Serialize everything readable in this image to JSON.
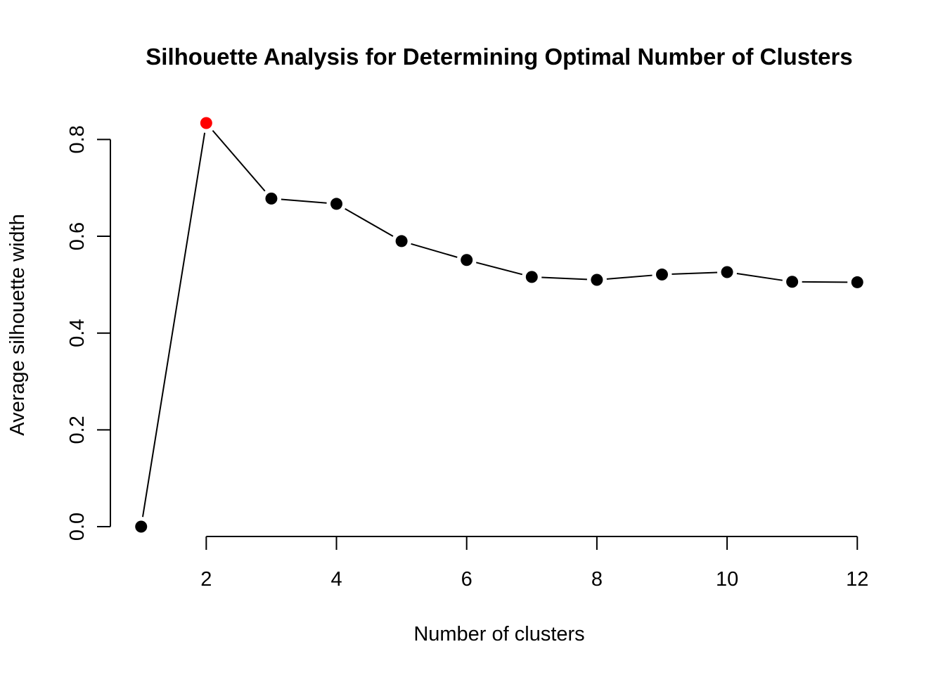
{
  "chart_data": {
    "type": "line",
    "title": "Silhouette Analysis for Determining Optimal Number of Clusters",
    "xlabel": "Number of clusters",
    "ylabel": "Average silhouette width",
    "x": [
      1,
      2,
      3,
      4,
      5,
      6,
      7,
      8,
      9,
      10,
      11,
      12
    ],
    "series": [
      {
        "values": [
          0.0,
          0.834,
          0.678,
          0.667,
          0.59,
          0.551,
          0.516,
          0.51,
          0.521,
          0.526,
          0.506,
          0.505
        ]
      }
    ],
    "highlight": {
      "x": 2,
      "y": 0.834,
      "color": "#ff0000"
    },
    "point_color": "#000000",
    "line_color": "#000000",
    "xticks": [
      2,
      4,
      6,
      8,
      10,
      12
    ],
    "xtick_labels": [
      "2",
      "4",
      "6",
      "8",
      "10",
      "12"
    ],
    "yticks": [
      0.0,
      0.2,
      0.4,
      0.6,
      0.8
    ],
    "ytick_labels": [
      "0.0",
      "0.2",
      "0.4",
      "0.6",
      "0.8"
    ],
    "xlim": [
      0.56,
      12.44
    ],
    "ylim": [
      -0.0334,
      0.8674
    ],
    "grid": false,
    "legend": "none",
    "plot_style": "type b (points connected by gapped lines)"
  }
}
